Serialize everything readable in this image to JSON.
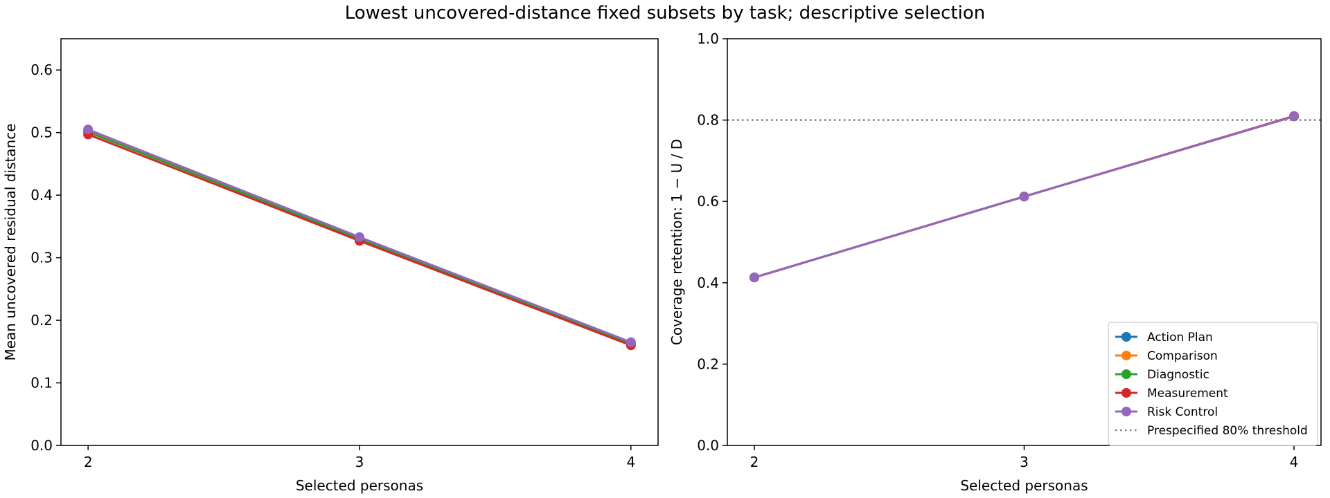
{
  "figure": {
    "title": "Lowest uncovered-distance fixed subsets by task; descriptive selection"
  },
  "chart_data": [
    {
      "type": "line",
      "xlabel": "Selected personas",
      "ylabel": "Mean uncovered residual distance",
      "x": [
        2,
        3,
        4
      ],
      "xticks": [
        "2",
        "3",
        "4"
      ],
      "yticks": [
        "0.0",
        "0.1",
        "0.2",
        "0.3",
        "0.4",
        "0.5",
        "0.6"
      ],
      "ylim": [
        0,
        0.65
      ],
      "xlim": [
        1.9,
        4.1
      ],
      "grid": false,
      "series": [
        {
          "name": "Action Plan",
          "color": "#1f77b4",
          "values": [
            0.503,
            0.331,
            0.163
          ]
        },
        {
          "name": "Comparison",
          "color": "#ff7f0e",
          "values": [
            0.502,
            0.33,
            0.163
          ]
        },
        {
          "name": "Diagnostic",
          "color": "#2ca02c",
          "values": [
            0.501,
            0.33,
            0.163
          ]
        },
        {
          "name": "Measurement",
          "color": "#d62728",
          "values": [
            0.497,
            0.327,
            0.16
          ]
        },
        {
          "name": "Risk Control",
          "color": "#9467bd",
          "values": [
            0.505,
            0.333,
            0.165
          ]
        }
      ]
    },
    {
      "type": "line",
      "xlabel": "Selected personas",
      "ylabel": "Coverage retention: 1 − U / D",
      "x": [
        2,
        3,
        4
      ],
      "xticks": [
        "2",
        "3",
        "4"
      ],
      "yticks": [
        "0.0",
        "0.2",
        "0.4",
        "0.6",
        "0.8",
        "1.0"
      ],
      "ylim": [
        0,
        1.0
      ],
      "xlim": [
        1.9,
        4.1
      ],
      "grid": false,
      "legend_position": "lower-right",
      "series": [
        {
          "name": "Action Plan",
          "color": "#1f77b4",
          "values": [
            0.413,
            0.612,
            0.809
          ]
        },
        {
          "name": "Comparison",
          "color": "#ff7f0e",
          "values": [
            0.413,
            0.612,
            0.809
          ]
        },
        {
          "name": "Diagnostic",
          "color": "#2ca02c",
          "values": [
            0.413,
            0.612,
            0.809
          ]
        },
        {
          "name": "Measurement",
          "color": "#d62728",
          "values": [
            0.413,
            0.612,
            0.81
          ]
        },
        {
          "name": "Risk Control",
          "color": "#9467bd",
          "values": [
            0.413,
            0.612,
            0.809
          ]
        }
      ],
      "reference_line": {
        "name": "Prespecified 80% threshold",
        "y": 0.8,
        "color": "#808080",
        "style": "dotted"
      }
    }
  ]
}
